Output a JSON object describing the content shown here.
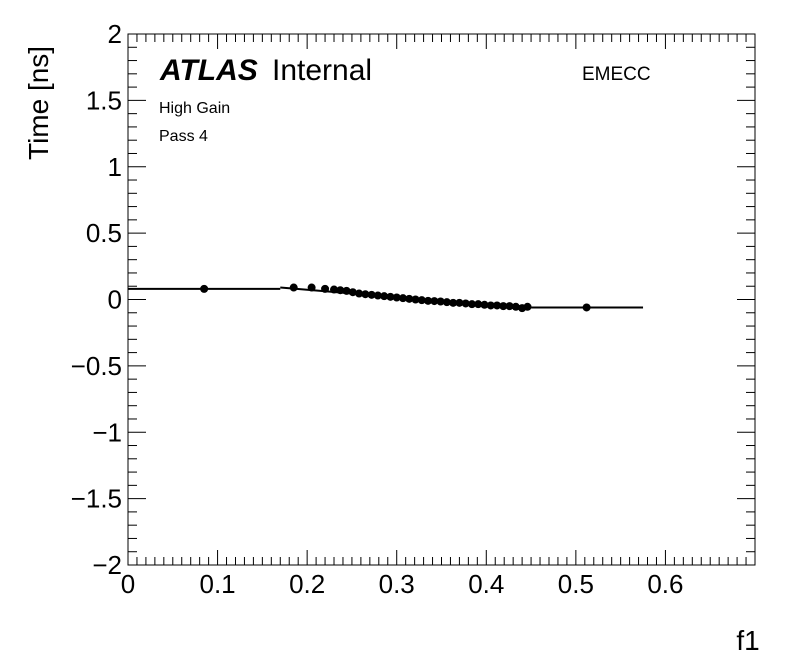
{
  "chart_data": {
    "type": "scatter",
    "xlabel": "f1",
    "ylabel": "Time [ns]",
    "xlim": [
      0,
      0.7
    ],
    "ylim": [
      -2,
      2
    ],
    "x_tick_labels": [
      "0",
      "0.1",
      "0.2",
      "0.3",
      "0.4",
      "0.5",
      "0.6"
    ],
    "y_tick_labels": [
      "2",
      "1.5",
      "1",
      "0.5",
      "0",
      "−0.5",
      "−1",
      "−1.5",
      "−2"
    ],
    "atlas_label": "ATLAS",
    "atlas_status": "Internal",
    "region": "EMECC",
    "gain": "High Gain",
    "pass": "Pass 4",
    "marker_color": "#000000",
    "series": [
      {
        "x": [
          0.085,
          0.185,
          0.205,
          0.22,
          0.23,
          0.237,
          0.244,
          0.251,
          0.258,
          0.265,
          0.272,
          0.279,
          0.286,
          0.293,
          0.3,
          0.307,
          0.314,
          0.321,
          0.328,
          0.335,
          0.342,
          0.349,
          0.356,
          0.363,
          0.37,
          0.377,
          0.384,
          0.391,
          0.398,
          0.405,
          0.412,
          0.419,
          0.426,
          0.433,
          0.44,
          0.446,
          0.512
        ],
        "y": [
          0.08,
          0.09,
          0.09,
          0.08,
          0.075,
          0.07,
          0.065,
          0.055,
          0.045,
          0.04,
          0.035,
          0.03,
          0.025,
          0.02,
          0.015,
          0.01,
          0.005,
          0.0,
          -0.005,
          -0.01,
          -0.012,
          -0.015,
          -0.02,
          -0.025,
          -0.025,
          -0.03,
          -0.035,
          -0.035,
          -0.04,
          -0.045,
          -0.045,
          -0.05,
          -0.05,
          -0.055,
          -0.065,
          -0.055,
          -0.06
        ]
      }
    ],
    "fit_segments": [
      {
        "x": [
          0.0,
          0.17
        ],
        "y": [
          0.08,
          0.08
        ]
      },
      {
        "x": [
          0.17,
          0.33
        ],
        "y": [
          0.09,
          0.0
        ]
      },
      {
        "x": [
          0.33,
          0.45
        ],
        "y": [
          0.0,
          -0.06
        ]
      },
      {
        "x": [
          0.45,
          0.575
        ],
        "y": [
          -0.06,
          -0.06
        ]
      }
    ]
  }
}
